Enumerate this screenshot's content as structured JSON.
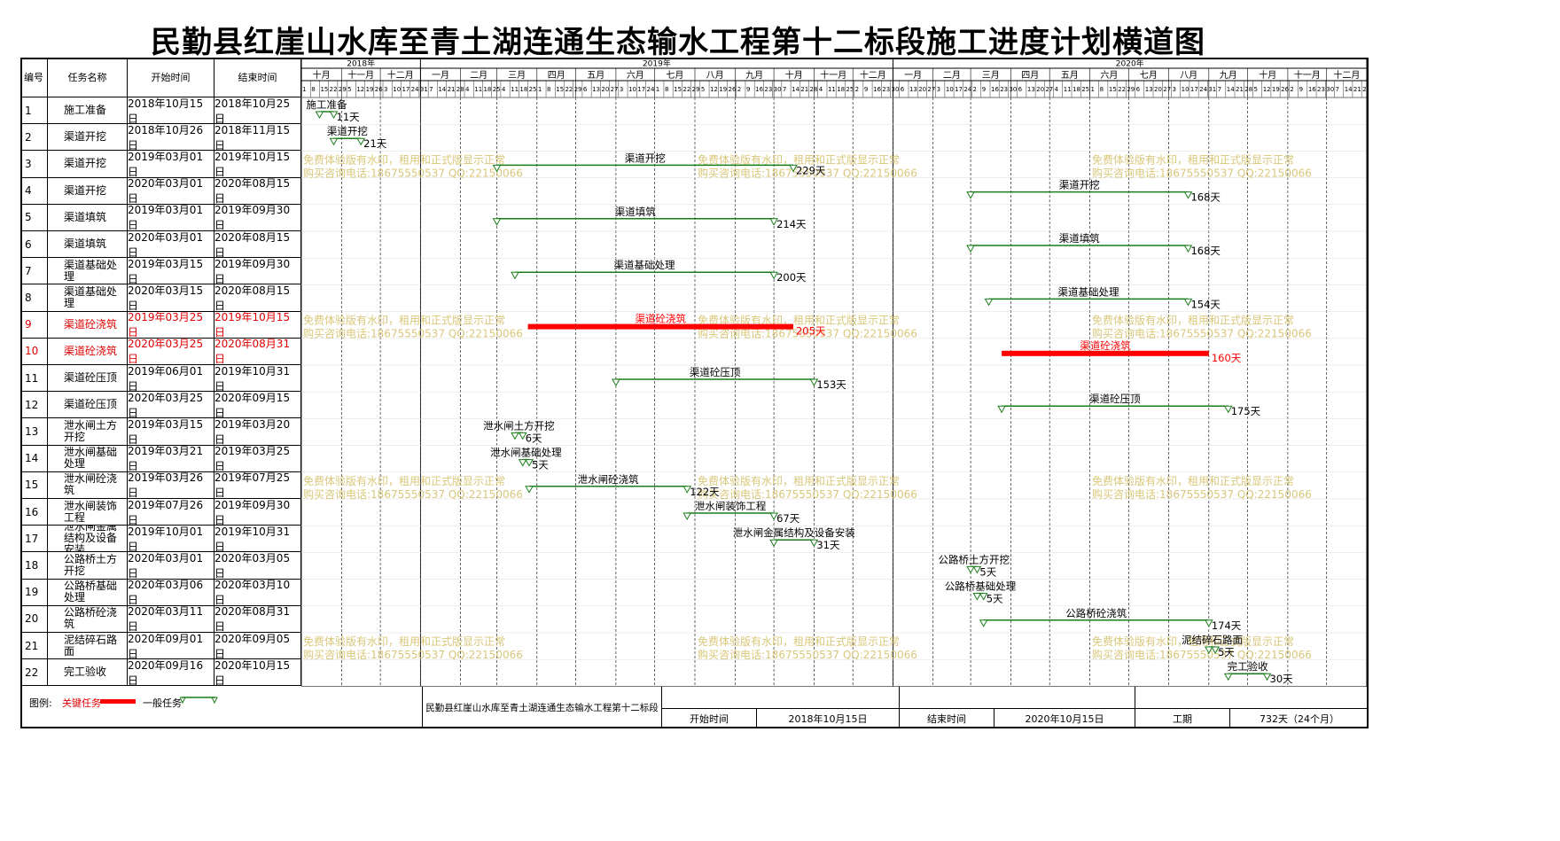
{
  "title": "民勤县红崖山水库至青土湖连通生态输水工程第十二标段施工进度计划横道图",
  "columns": {
    "id": "编号",
    "name": "任务名称",
    "start": "开始时间",
    "end": "结束时间"
  },
  "timeline": {
    "start_date": "2018-10-01",
    "end_date": "2020-12-31",
    "years": [
      {
        "label": "2018年",
        "months": 3
      },
      {
        "label": "2019年",
        "months": 12
      },
      {
        "label": "2020年",
        "months": 12
      }
    ],
    "month_labels": [
      "十月",
      "十一月",
      "十二月",
      "一月",
      "二月",
      "三月",
      "四月",
      "五月",
      "六月",
      "七月",
      "八月",
      "九月",
      "十月",
      "十一月",
      "十二月",
      "一月",
      "二月",
      "三月",
      "四月",
      "五月",
      "六月",
      "七月",
      "八月",
      "九月",
      "十月",
      "十一月",
      "十二月"
    ],
    "day_ticks_2018_10": "15|22|29"
  },
  "tasks": [
    {
      "id": "1",
      "name": "施工准备",
      "start": "2018年10月15日",
      "end": "2018年10月25日",
      "s": "2018-10-15",
      "e": "2018-10-25",
      "days": "11天",
      "critical": false
    },
    {
      "id": "2",
      "name": "渠道开挖",
      "start": "2018年10月26日",
      "end": "2018年11月15日",
      "s": "2018-10-26",
      "e": "2018-11-15",
      "days": "21天",
      "critical": false
    },
    {
      "id": "3",
      "name": "渠道开挖",
      "start": "2019年03月01日",
      "end": "2019年10月15日",
      "s": "2019-03-01",
      "e": "2019-10-15",
      "days": "229天",
      "critical": false
    },
    {
      "id": "4",
      "name": "渠道开挖",
      "start": "2020年03月01日",
      "end": "2020年08月15日",
      "s": "2020-03-01",
      "e": "2020-08-15",
      "days": "168天",
      "critical": false
    },
    {
      "id": "5",
      "name": "渠道填筑",
      "start": "2019年03月01日",
      "end": "2019年09月30日",
      "s": "2019-03-01",
      "e": "2019-09-30",
      "days": "214天",
      "critical": false
    },
    {
      "id": "6",
      "name": "渠道填筑",
      "start": "2020年03月01日",
      "end": "2020年08月15日",
      "s": "2020-03-01",
      "e": "2020-08-15",
      "days": "168天",
      "critical": false
    },
    {
      "id": "7",
      "name": "渠道基础处理",
      "start": "2019年03月15日",
      "end": "2019年09月30日",
      "s": "2019-03-15",
      "e": "2019-09-30",
      "days": "200天",
      "critical": false
    },
    {
      "id": "8",
      "name": "渠道基础处理",
      "start": "2020年03月15日",
      "end": "2020年08月15日",
      "s": "2020-03-15",
      "e": "2020-08-15",
      "days": "154天",
      "critical": false
    },
    {
      "id": "9",
      "name": "渠道砼浇筑",
      "start": "2019年03月25日",
      "end": "2019年10月15日",
      "s": "2019-03-25",
      "e": "2019-10-15",
      "days": "205天",
      "critical": true
    },
    {
      "id": "10",
      "name": "渠道砼浇筑",
      "start": "2020年03月25日",
      "end": "2020年08月31日",
      "s": "2020-03-25",
      "e": "2020-08-31",
      "days": "160天",
      "critical": true
    },
    {
      "id": "11",
      "name": "渠道砼压顶",
      "start": "2019年06月01日",
      "end": "2019年10月31日",
      "s": "2019-06-01",
      "e": "2019-10-31",
      "days": "153天",
      "critical": false
    },
    {
      "id": "12",
      "name": "渠道砼压顶",
      "start": "2020年03月25日",
      "end": "2020年09月15日",
      "s": "2020-03-25",
      "e": "2020-09-15",
      "days": "175天",
      "critical": false
    },
    {
      "id": "13",
      "name": "泄水闸土方开挖",
      "start": "2019年03月15日",
      "end": "2019年03月20日",
      "s": "2019-03-15",
      "e": "2019-03-20",
      "days": "6天",
      "critical": false
    },
    {
      "id": "14",
      "name": "泄水闸基础处理",
      "start": "2019年03月21日",
      "end": "2019年03月25日",
      "s": "2019-03-21",
      "e": "2019-03-25",
      "days": "5天",
      "critical": false
    },
    {
      "id": "15",
      "name": "泄水闸砼浇筑",
      "start": "2019年03月26日",
      "end": "2019年07月25日",
      "s": "2019-03-26",
      "e": "2019-07-25",
      "days": "122天",
      "critical": false
    },
    {
      "id": "16",
      "name": "泄水闸装饰工程",
      "start": "2019年07月26日",
      "end": "2019年09月30日",
      "s": "2019-07-26",
      "e": "2019-09-30",
      "days": "67天",
      "critical": false
    },
    {
      "id": "17",
      "name": "泄水闸金属结构及设备安装",
      "start": "2019年10月01日",
      "end": "2019年10月31日",
      "s": "2019-10-01",
      "e": "2019-10-31",
      "days": "31天",
      "critical": false
    },
    {
      "id": "18",
      "name": "公路桥土方开挖",
      "start": "2020年03月01日",
      "end": "2020年03月05日",
      "s": "2020-03-01",
      "e": "2020-03-05",
      "days": "5天",
      "critical": false
    },
    {
      "id": "19",
      "name": "公路桥基础处理",
      "start": "2020年03月06日",
      "end": "2020年03月10日",
      "s": "2020-03-06",
      "e": "2020-03-10",
      "days": "5天",
      "critical": false
    },
    {
      "id": "20",
      "name": "公路桥砼浇筑",
      "start": "2020年03月11日",
      "end": "2020年08月31日",
      "s": "2020-03-11",
      "e": "2020-08-31",
      "days": "174天",
      "critical": false
    },
    {
      "id": "21",
      "name": "泥结碎石路面",
      "start": "2020年09月01日",
      "end": "2020年09月05日",
      "s": "2020-09-01",
      "e": "2020-09-05",
      "days": "5天",
      "critical": false
    },
    {
      "id": "22",
      "name": "完工验收",
      "start": "2020年09月16日",
      "end": "2020年10月15日",
      "s": "2020-09-16",
      "e": "2020-10-15",
      "days": "30天",
      "critical": false
    }
  ],
  "watermark": {
    "line1": "免费体验版有水印，租用和正式版显示正常",
    "line2": "购买咨询电话:18675550537 QQ:22150066"
  },
  "footer": {
    "legend_label": "图例:",
    "critical_label": "关键任务",
    "normal_label": "一般任务",
    "project_name": "民勤县红崖山水库至青土湖连通生态输水工程第十二标段",
    "start_label": "开始时间",
    "start_value": "2018年10月15日",
    "end_label": "结束时间",
    "end_value": "2020年10月15日",
    "duration_label": "工期",
    "duration_value": "732天（24个月）"
  },
  "colors": {
    "normal": "#1a7d1a",
    "critical": "#ff0000",
    "watermark": "#d9c77a"
  }
}
